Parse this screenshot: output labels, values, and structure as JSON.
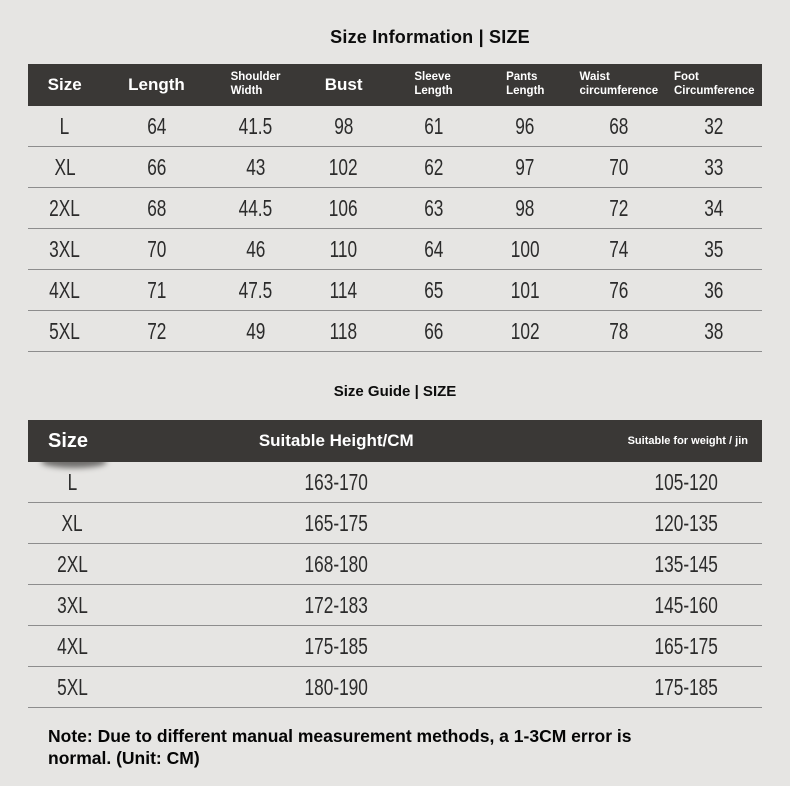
{
  "colors": {
    "page_background": "#e6e5e3",
    "table_header_background": "#3a3836",
    "table_header_text": "#ffffff",
    "row_divider": "#8d8d8d",
    "body_text": "#2b2b2b"
  },
  "section1": {
    "title": "Size Information | SIZE",
    "table": {
      "columns": [
        "Size",
        "Length",
        "Shoulder Width",
        "Bust",
        "Sleeve Length",
        "Pants Length",
        "Waist circumference",
        "Foot Circumference"
      ],
      "rows": [
        [
          "L",
          "64",
          "41.5",
          "98",
          "61",
          "96",
          "68",
          "32"
        ],
        [
          "XL",
          "66",
          "43",
          "102",
          "62",
          "97",
          "70",
          "33"
        ],
        [
          "2XL",
          "68",
          "44.5",
          "106",
          "63",
          "98",
          "72",
          "34"
        ],
        [
          "3XL",
          "70",
          "46",
          "110",
          "64",
          "100",
          "74",
          "35"
        ],
        [
          "4XL",
          "71",
          "47.5",
          "114",
          "65",
          "101",
          "76",
          "36"
        ],
        [
          "5XL",
          "72",
          "49",
          "118",
          "66",
          "102",
          "78",
          "38"
        ]
      ]
    }
  },
  "section2": {
    "title": "Size Guide | SIZE",
    "table": {
      "columns": [
        "Size",
        "Suitable Height/CM",
        "Suitable for weight / jin"
      ],
      "rows": [
        [
          "L",
          "163-170",
          "105-120"
        ],
        [
          "XL",
          "165-175",
          "120-135"
        ],
        [
          "2XL",
          "168-180",
          "135-145"
        ],
        [
          "3XL",
          "172-183",
          "145-160"
        ],
        [
          "4XL",
          "175-185",
          "165-175"
        ],
        [
          "5XL",
          "180-190",
          "175-185"
        ]
      ]
    }
  },
  "note": "Note: Due to different manual measurement methods, a 1-3CM error is\nnormal. (Unit: CM)"
}
